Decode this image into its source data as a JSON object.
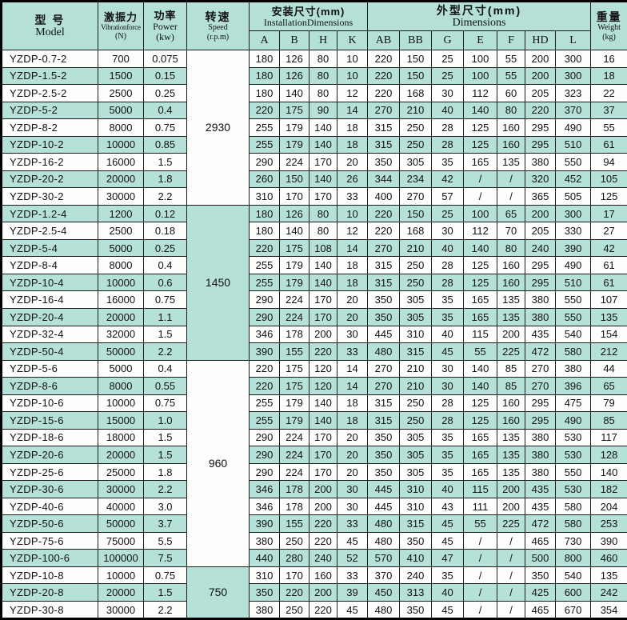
{
  "table": {
    "header": {
      "model": {
        "zh": "型 号",
        "en": "Model"
      },
      "force": {
        "zh": "激振力",
        "en": "Vibrationforce",
        "unit": "(N)"
      },
      "power": {
        "zh": "功率",
        "en": "Power",
        "unit": "(kw)"
      },
      "speed": {
        "zh": "转速",
        "en": "Speed",
        "unit": "(r.p.m)"
      },
      "installation": {
        "zh": "安装尺寸(mm)",
        "en": "InstallationDimensions",
        "subcols": [
          "A",
          "B",
          "H",
          "K"
        ]
      },
      "dimensions": {
        "zh": "外型尺寸(mm)",
        "en": "Dimensions",
        "subcols": [
          "AB",
          "BB",
          "G",
          "E",
          "F",
          "HD",
          "L"
        ]
      },
      "weight": {
        "zh": "重量",
        "en": "Weight",
        "unit": "(kg)"
      }
    },
    "column_names": [
      "model",
      "vibration-force",
      "power",
      "dim-a",
      "dim-b",
      "dim-h",
      "dim-k",
      "dim-ab",
      "dim-bb",
      "dim-g",
      "dim-e",
      "dim-f",
      "dim-hd",
      "dim-l",
      "weight"
    ],
    "speed_groups": [
      {
        "speed": "2930",
        "span": 9,
        "teal": false
      },
      {
        "speed": "1450",
        "span": 9,
        "teal": true
      },
      {
        "speed": "960",
        "span": 12,
        "teal": false
      },
      {
        "speed": "750",
        "span": 3,
        "teal": true
      }
    ],
    "rows": [
      [
        "YZDP-0.7-2",
        "700",
        "0.075",
        "180",
        "126",
        "80",
        "10",
        "220",
        "150",
        "25",
        "100",
        "55",
        "200",
        "300",
        "16"
      ],
      [
        "YZDP-1.5-2",
        "1500",
        "0.15",
        "180",
        "126",
        "80",
        "10",
        "220",
        "150",
        "25",
        "100",
        "55",
        "200",
        "300",
        "18"
      ],
      [
        "YZDP-2.5-2",
        "2500",
        "0.25",
        "180",
        "140",
        "80",
        "12",
        "220",
        "168",
        "30",
        "112",
        "60",
        "205",
        "323",
        "22"
      ],
      [
        "YZDP-5-2",
        "5000",
        "0.4",
        "220",
        "175",
        "90",
        "14",
        "270",
        "210",
        "40",
        "140",
        "80",
        "220",
        "370",
        "37"
      ],
      [
        "YZDP-8-2",
        "8000",
        "0.75",
        "255",
        "179",
        "140",
        "18",
        "315",
        "250",
        "28",
        "125",
        "160",
        "295",
        "490",
        "55"
      ],
      [
        "YZDP-10-2",
        "10000",
        "0.85",
        "255",
        "179",
        "140",
        "18",
        "315",
        "250",
        "28",
        "125",
        "160",
        "295",
        "510",
        "61"
      ],
      [
        "YZDP-16-2",
        "16000",
        "1.5",
        "290",
        "224",
        "170",
        "20",
        "350",
        "305",
        "35",
        "165",
        "135",
        "380",
        "550",
        "94"
      ],
      [
        "YZDP-20-2",
        "20000",
        "1.8",
        "260",
        "150",
        "140",
        "26",
        "344",
        "234",
        "42",
        "/",
        "/",
        "320",
        "452",
        "105"
      ],
      [
        "YZDP-30-2",
        "30000",
        "2.2",
        "310",
        "170",
        "170",
        "33",
        "400",
        "270",
        "57",
        "/",
        "/",
        "365",
        "505",
        "125"
      ],
      [
        "YZDP-1.2-4",
        "1200",
        "0.12",
        "180",
        "126",
        "80",
        "10",
        "220",
        "150",
        "25",
        "100",
        "65",
        "200",
        "300",
        "17"
      ],
      [
        "YZDP-2.5-4",
        "2500",
        "0.18",
        "180",
        "140",
        "80",
        "12",
        "220",
        "168",
        "30",
        "112",
        "70",
        "205",
        "330",
        "27"
      ],
      [
        "YZDP-5-4",
        "5000",
        "0.25",
        "220",
        "175",
        "108",
        "14",
        "270",
        "210",
        "40",
        "140",
        "80",
        "240",
        "390",
        "42"
      ],
      [
        "YZDP-8-4",
        "8000",
        "0.4",
        "255",
        "179",
        "140",
        "18",
        "315",
        "250",
        "28",
        "125",
        "160",
        "295",
        "490",
        "61"
      ],
      [
        "YZDP-10-4",
        "10000",
        "0.6",
        "255",
        "179",
        "140",
        "18",
        "315",
        "250",
        "28",
        "125",
        "160",
        "295",
        "510",
        "61"
      ],
      [
        "YZDP-16-4",
        "16000",
        "0.75",
        "290",
        "224",
        "170",
        "20",
        "350",
        "305",
        "35",
        "165",
        "135",
        "380",
        "550",
        "107"
      ],
      [
        "YZDP-20-4",
        "20000",
        "1.1",
        "290",
        "224",
        "170",
        "20",
        "350",
        "305",
        "35",
        "165",
        "135",
        "380",
        "550",
        "135"
      ],
      [
        "YZDP-32-4",
        "32000",
        "1.5",
        "346",
        "178",
        "200",
        "30",
        "445",
        "310",
        "40",
        "115",
        "200",
        "435",
        "540",
        "154"
      ],
      [
        "YZDP-50-4",
        "50000",
        "2.2",
        "390",
        "155",
        "220",
        "33",
        "480",
        "315",
        "45",
        "55",
        "225",
        "472",
        "580",
        "212"
      ],
      [
        "YZDP-5-6",
        "5000",
        "0.4",
        "220",
        "175",
        "120",
        "14",
        "270",
        "210",
        "30",
        "140",
        "85",
        "270",
        "380",
        "44"
      ],
      [
        "YZDP-8-6",
        "8000",
        "0.55",
        "220",
        "175",
        "120",
        "14",
        "270",
        "210",
        "30",
        "140",
        "85",
        "270",
        "396",
        "65"
      ],
      [
        "YZDP-10-6",
        "10000",
        "0.75",
        "255",
        "179",
        "140",
        "18",
        "315",
        "250",
        "28",
        "125",
        "160",
        "295",
        "475",
        "79"
      ],
      [
        "YZDP-15-6",
        "15000",
        "1.0",
        "255",
        "179",
        "140",
        "18",
        "315",
        "250",
        "28",
        "125",
        "160",
        "295",
        "490",
        "85"
      ],
      [
        "YZDP-18-6",
        "18000",
        "1.5",
        "290",
        "224",
        "170",
        "20",
        "350",
        "305",
        "35",
        "165",
        "135",
        "380",
        "530",
        "117"
      ],
      [
        "YZDP-20-6",
        "20000",
        "1.5",
        "290",
        "224",
        "170",
        "20",
        "350",
        "305",
        "35",
        "165",
        "135",
        "380",
        "530",
        "128"
      ],
      [
        "YZDP-25-6",
        "25000",
        "1.8",
        "290",
        "224",
        "170",
        "20",
        "350",
        "305",
        "35",
        "165",
        "135",
        "380",
        "550",
        "140"
      ],
      [
        "YZDP-30-6",
        "30000",
        "2.2",
        "346",
        "178",
        "200",
        "30",
        "445",
        "310",
        "40",
        "115",
        "200",
        "435",
        "530",
        "182"
      ],
      [
        "YZDP-40-6",
        "40000",
        "3.0",
        "346",
        "178",
        "200",
        "30",
        "445",
        "310",
        "43",
        "111",
        "200",
        "435",
        "580",
        "204"
      ],
      [
        "YZDP-50-6",
        "50000",
        "3.7",
        "390",
        "155",
        "220",
        "33",
        "480",
        "315",
        "45",
        "55",
        "225",
        "472",
        "580",
        "253"
      ],
      [
        "YZDP-75-6",
        "75000",
        "5.5",
        "380",
        "250",
        "220",
        "45",
        "480",
        "350",
        "45",
        "/",
        "/",
        "465",
        "730",
        "390"
      ],
      [
        "YZDP-100-6",
        "100000",
        "7.5",
        "440",
        "280",
        "240",
        "52",
        "570",
        "410",
        "47",
        "/",
        "/",
        "500",
        "800",
        "460"
      ],
      [
        "YZDP-10-8",
        "10000",
        "0.75",
        "310",
        "170",
        "160",
        "33",
        "370",
        "240",
        "35",
        "/",
        "/",
        "350",
        "540",
        "135"
      ],
      [
        "YZDP-20-8",
        "20000",
        "1.5",
        "350",
        "220",
        "200",
        "39",
        "450",
        "313",
        "40",
        "/",
        "/",
        "425",
        "600",
        "242"
      ],
      [
        "YZDP-30-8",
        "30000",
        "2.2",
        "380",
        "250",
        "220",
        "45",
        "480",
        "350",
        "45",
        "/",
        "/",
        "465",
        "670",
        "354"
      ]
    ],
    "colors": {
      "stripe": "#b6e1d9",
      "header_bg": "#b4e0d8",
      "border": "#1b1b1b",
      "text": "#111111"
    }
  }
}
